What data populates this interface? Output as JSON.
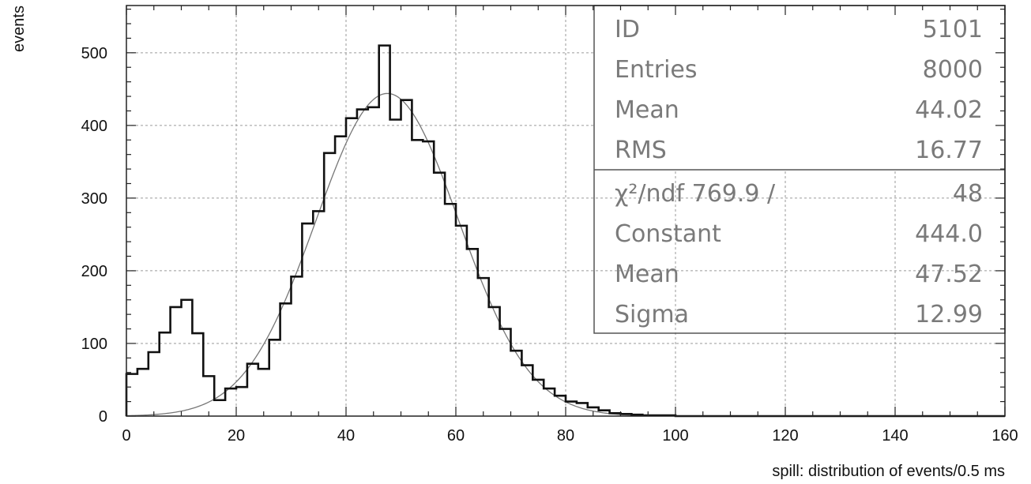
{
  "chart_data": {
    "type": "bar",
    "xlabel": "spill:  distribution of events/0.5 ms",
    "ylabel": "events",
    "xlim": [
      0,
      160
    ],
    "ylim": [
      0,
      565
    ],
    "grid": true,
    "x_ticks": [
      0,
      20,
      40,
      60,
      80,
      100,
      120,
      140,
      160
    ],
    "y_ticks": [
      0,
      100,
      200,
      300,
      400,
      500
    ],
    "bin_width": 2,
    "histogram": {
      "bin_edges_start": 0,
      "values": [
        58,
        65,
        88,
        115,
        150,
        160,
        114,
        55,
        22,
        38,
        40,
        72,
        65,
        105,
        155,
        192,
        265,
        282,
        362,
        385,
        410,
        422,
        425,
        510,
        408,
        435,
        380,
        378,
        335,
        292,
        262,
        230,
        190,
        150,
        120,
        90,
        70,
        50,
        38,
        28,
        20,
        18,
        12,
        8,
        4,
        3,
        2,
        1,
        1,
        1,
        0,
        0,
        0,
        0,
        0,
        0,
        0,
        0,
        0,
        0,
        0,
        0,
        0,
        0,
        0,
        0,
        0,
        0,
        0,
        0,
        0,
        0,
        0,
        0,
        0,
        0,
        0,
        0,
        0,
        0
      ]
    },
    "fit": {
      "function": "gaussian",
      "constant": 444.0,
      "mean": 47.52,
      "sigma": 12.99
    },
    "stats_box": {
      "rows": [
        {
          "label": "ID",
          "value": "5101"
        },
        {
          "label": "Entries",
          "value": "8000"
        },
        {
          "label": "Mean",
          "value": "44.02"
        },
        {
          "label": "RMS",
          "value": "16.77"
        }
      ],
      "fit_rows": [
        {
          "label": "χ²/ndf   769.9   /",
          "value": "48"
        },
        {
          "label": "Constant",
          "value": "444.0"
        },
        {
          "label": "Mean",
          "value": "47.52"
        },
        {
          "label": "Sigma",
          "value": "12.99"
        }
      ]
    },
    "colors": {
      "histogram": "#111111",
      "fit_curve": "#777777",
      "grid": "#9a9a9a",
      "stats_text": "#7a7a7a"
    }
  }
}
